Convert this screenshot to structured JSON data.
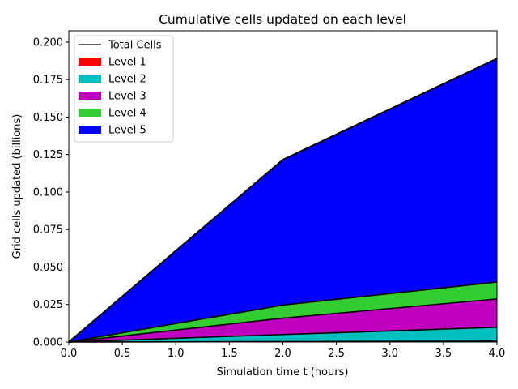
{
  "chart_data": {
    "type": "area",
    "stacked": true,
    "title": "Cumulative cells updated on each level",
    "xlabel": "Simulation time t (hours)",
    "ylabel": "Grid cells updated (billions)",
    "xlim": [
      0.0,
      4.0
    ],
    "ylim": [
      0.0,
      0.2075
    ],
    "xticks": [
      "0.0",
      "0.5",
      "1.0",
      "1.5",
      "2.0",
      "2.5",
      "3.0",
      "3.5",
      "4.0"
    ],
    "yticks": [
      "0.000",
      "0.025",
      "0.050",
      "0.075",
      "0.100",
      "0.125",
      "0.150",
      "0.175",
      "0.200"
    ],
    "grid": false,
    "legend_position": "upper-left",
    "x": [
      0.0,
      2.0,
      4.0
    ],
    "series": [
      {
        "name": "Level 1",
        "color": "#ff0000",
        "values": [
          0.0,
          0.0003,
          0.0006
        ]
      },
      {
        "name": "Level 2",
        "color": "#00bfbf",
        "values": [
          0.0,
          0.0047,
          0.0092
        ]
      },
      {
        "name": "Level 3",
        "color": "#bf00bf",
        "values": [
          0.0,
          0.0109,
          0.0189
        ]
      },
      {
        "name": "Level 4",
        "color": "#33cc33",
        "values": [
          0.0,
          0.0087,
          0.0113
        ]
      },
      {
        "name": "Level 5",
        "color": "#0000ff",
        "values": [
          0.0,
          0.097,
          0.149
        ]
      }
    ],
    "total": {
      "name": "Total Cells",
      "color": "#000000",
      "values": [
        0.0,
        0.1216,
        0.189
      ]
    }
  }
}
